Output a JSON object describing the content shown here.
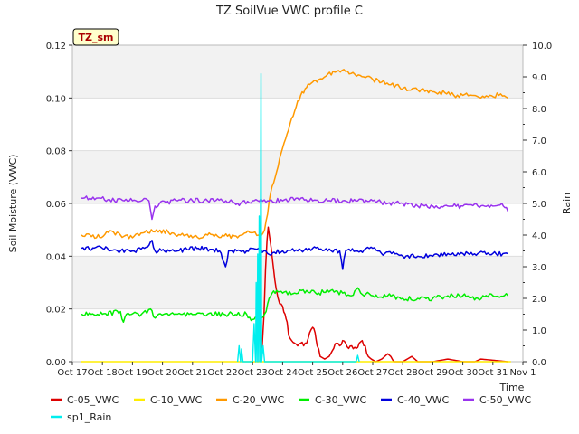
{
  "chart_data": {
    "type": "line",
    "title": "TZ SoilVue VWC profile C",
    "station_label": "TZ_sm",
    "ylabel": "Soil Moisture (VWC)",
    "y2label": "Rain",
    "xlabel": "Time",
    "ylim": [
      0,
      0.12
    ],
    "y2lim": [
      0,
      10
    ],
    "xlim": [
      0,
      15
    ],
    "yticks": [
      "0.00",
      "0.02",
      "0.04",
      "0.06",
      "0.08",
      "0.10",
      "0.12"
    ],
    "y2ticks": [
      "0.0",
      "1.0",
      "2.0",
      "3.0",
      "4.0",
      "5.0",
      "6.0",
      "7.0",
      "8.0",
      "9.0",
      "10.0"
    ],
    "xtick_labels": [
      "Oct 17",
      "Oct 18",
      "Oct 19",
      "Oct 20",
      "Oct 21",
      "Oct 22",
      "Oct 23",
      "Oct 24",
      "Oct 25",
      "Oct 26",
      "Oct 27",
      "Oct 28",
      "Oct 29",
      "Oct 30",
      "Oct 31",
      "Nov 1"
    ],
    "grid": true,
    "legend_position": "bottom",
    "series": [
      {
        "name": "C-05_VWC",
        "color": "#dd0000",
        "axis": "left",
        "points": [
          [
            6.25,
            0
          ],
          [
            6.32,
            0.006
          ],
          [
            6.38,
            0.018
          ],
          [
            6.43,
            0.035
          ],
          [
            6.48,
            0.046
          ],
          [
            6.52,
            0.051
          ],
          [
            6.57,
            0.047
          ],
          [
            6.62,
            0.043
          ],
          [
            6.7,
            0.035
          ],
          [
            6.78,
            0.028
          ],
          [
            6.9,
            0.022
          ],
          [
            7.0,
            0.021
          ],
          [
            7.08,
            0.018
          ],
          [
            7.15,
            0.015
          ],
          [
            7.2,
            0.01
          ],
          [
            7.3,
            0.008
          ],
          [
            7.4,
            0.007
          ],
          [
            7.5,
            0.006
          ],
          [
            7.6,
            0.007
          ],
          [
            7.7,
            0.006
          ],
          [
            7.8,
            0.007
          ],
          [
            7.9,
            0.011
          ],
          [
            8.0,
            0.013
          ],
          [
            8.08,
            0.011
          ],
          [
            8.15,
            0.006
          ],
          [
            8.25,
            0.002
          ],
          [
            8.4,
            0.001
          ],
          [
            8.55,
            0.002
          ],
          [
            8.7,
            0.005
          ],
          [
            8.8,
            0.007
          ],
          [
            8.9,
            0.006
          ],
          [
            9.0,
            0.008
          ],
          [
            9.1,
            0.007
          ],
          [
            9.2,
            0.005
          ],
          [
            9.3,
            0.006
          ],
          [
            9.45,
            0.005
          ],
          [
            9.55,
            0.007
          ],
          [
            9.65,
            0.008
          ],
          [
            9.75,
            0.006
          ],
          [
            9.85,
            0.002
          ],
          [
            9.95,
            0.001
          ],
          [
            10.1,
            0
          ],
          [
            10.3,
            0.001
          ],
          [
            10.5,
            0.003
          ],
          [
            10.6,
            0.002
          ],
          [
            10.7,
            0
          ],
          [
            11.0,
            0
          ],
          [
            11.3,
            0.002
          ],
          [
            11.4,
            0.001
          ],
          [
            11.5,
            0
          ],
          [
            12.0,
            0
          ],
          [
            12.5,
            0.001
          ],
          [
            13.0,
            0
          ],
          [
            13.4,
            0
          ],
          [
            13.6,
            0.001
          ],
          [
            14.5,
            0
          ]
        ]
      },
      {
        "name": "C-10_VWC",
        "color": "#ffee00",
        "axis": "left",
        "points": [
          [
            0.3,
            0.0
          ],
          [
            14.6,
            0.0
          ]
        ]
      },
      {
        "name": "C-20_VWC",
        "color": "#ff9900",
        "axis": "left",
        "points": [
          [
            0.3,
            0.048
          ],
          [
            0.8,
            0.047
          ],
          [
            1.2,
            0.049
          ],
          [
            1.6,
            0.048
          ],
          [
            2.0,
            0.047
          ],
          [
            2.4,
            0.049
          ],
          [
            2.8,
            0.05
          ],
          [
            3.2,
            0.049
          ],
          [
            3.6,
            0.048
          ],
          [
            4.0,
            0.047
          ],
          [
            4.5,
            0.048
          ],
          [
            5.0,
            0.048
          ],
          [
            5.5,
            0.047
          ],
          [
            5.9,
            0.049
          ],
          [
            6.2,
            0.048
          ],
          [
            6.3,
            0.048
          ],
          [
            6.4,
            0.05
          ],
          [
            6.5,
            0.056
          ],
          [
            6.6,
            0.064
          ],
          [
            6.8,
            0.072
          ],
          [
            7.0,
            0.081
          ],
          [
            7.2,
            0.088
          ],
          [
            7.4,
            0.095
          ],
          [
            7.6,
            0.101
          ],
          [
            7.8,
            0.104
          ],
          [
            8.0,
            0.106
          ],
          [
            8.2,
            0.107
          ],
          [
            8.5,
            0.109
          ],
          [
            8.8,
            0.11
          ],
          [
            9.1,
            0.11
          ],
          [
            9.4,
            0.109
          ],
          [
            9.7,
            0.108
          ],
          [
            10.0,
            0.107
          ],
          [
            10.3,
            0.106
          ],
          [
            10.6,
            0.105
          ],
          [
            10.9,
            0.104
          ],
          [
            11.2,
            0.103
          ],
          [
            11.5,
            0.103
          ],
          [
            11.8,
            0.103
          ],
          [
            12.1,
            0.102
          ],
          [
            12.4,
            0.102
          ],
          [
            12.7,
            0.101
          ],
          [
            13.0,
            0.101
          ],
          [
            13.3,
            0.101
          ],
          [
            13.6,
            0.1
          ],
          [
            13.9,
            0.101
          ],
          [
            14.2,
            0.101
          ],
          [
            14.5,
            0.1
          ]
        ]
      },
      {
        "name": "C-30_VWC",
        "color": "#00ee00",
        "axis": "left",
        "points": [
          [
            0.3,
            0.018
          ],
          [
            1.0,
            0.018
          ],
          [
            1.6,
            0.019
          ],
          [
            1.7,
            0.015
          ],
          [
            1.8,
            0.018
          ],
          [
            2.3,
            0.018
          ],
          [
            2.6,
            0.02
          ],
          [
            2.7,
            0.017
          ],
          [
            3.5,
            0.018
          ],
          [
            4.5,
            0.018
          ],
          [
            5.2,
            0.018
          ],
          [
            5.8,
            0.018
          ],
          [
            6.0,
            0.016
          ],
          [
            6.2,
            0.018
          ],
          [
            6.35,
            0.017
          ],
          [
            6.45,
            0.019
          ],
          [
            6.55,
            0.024
          ],
          [
            6.65,
            0.026
          ],
          [
            6.8,
            0.027
          ],
          [
            7.0,
            0.026
          ],
          [
            7.4,
            0.026
          ],
          [
            7.8,
            0.027
          ],
          [
            8.2,
            0.026
          ],
          [
            8.6,
            0.027
          ],
          [
            9.0,
            0.026
          ],
          [
            9.3,
            0.025
          ],
          [
            9.5,
            0.028
          ],
          [
            9.6,
            0.026
          ],
          [
            10.0,
            0.025
          ],
          [
            10.5,
            0.025
          ],
          [
            11.0,
            0.024
          ],
          [
            11.5,
            0.024
          ],
          [
            12.0,
            0.024
          ],
          [
            12.5,
            0.025
          ],
          [
            13.0,
            0.025
          ],
          [
            13.5,
            0.024
          ],
          [
            14.0,
            0.025
          ],
          [
            14.5,
            0.025
          ]
        ]
      },
      {
        "name": "C-40_VWC",
        "color": "#0000dd",
        "axis": "left",
        "points": [
          [
            0.3,
            0.043
          ],
          [
            1.0,
            0.043
          ],
          [
            1.5,
            0.042
          ],
          [
            2.0,
            0.042
          ],
          [
            2.4,
            0.043
          ],
          [
            2.65,
            0.046
          ],
          [
            2.75,
            0.042
          ],
          [
            3.5,
            0.042
          ],
          [
            4.2,
            0.043
          ],
          [
            4.9,
            0.042
          ],
          [
            5.1,
            0.036
          ],
          [
            5.2,
            0.042
          ],
          [
            5.8,
            0.042
          ],
          [
            6.2,
            0.043
          ],
          [
            6.5,
            0.041
          ],
          [
            7.0,
            0.042
          ],
          [
            7.5,
            0.042
          ],
          [
            8.0,
            0.043
          ],
          [
            8.5,
            0.042
          ],
          [
            8.9,
            0.042
          ],
          [
            9.0,
            0.035
          ],
          [
            9.1,
            0.042
          ],
          [
            9.6,
            0.042
          ],
          [
            10.0,
            0.043
          ],
          [
            10.4,
            0.041
          ],
          [
            10.8,
            0.041
          ],
          [
            11.0,
            0.04
          ],
          [
            11.5,
            0.04
          ],
          [
            12.0,
            0.04
          ],
          [
            12.5,
            0.041
          ],
          [
            13.0,
            0.041
          ],
          [
            13.5,
            0.041
          ],
          [
            14.0,
            0.041
          ],
          [
            14.5,
            0.041
          ]
        ]
      },
      {
        "name": "C-50_VWC",
        "color": "#9933ee",
        "axis": "left",
        "points": [
          [
            0.3,
            0.062
          ],
          [
            0.8,
            0.062
          ],
          [
            1.4,
            0.061
          ],
          [
            2.0,
            0.061
          ],
          [
            2.55,
            0.061
          ],
          [
            2.65,
            0.054
          ],
          [
            2.75,
            0.059
          ],
          [
            2.9,
            0.06
          ],
          [
            3.5,
            0.061
          ],
          [
            4.0,
            0.061
          ],
          [
            4.5,
            0.061
          ],
          [
            5.0,
            0.061
          ],
          [
            5.5,
            0.06
          ],
          [
            6.0,
            0.061
          ],
          [
            6.5,
            0.061
          ],
          [
            7.0,
            0.061
          ],
          [
            7.5,
            0.062
          ],
          [
            8.0,
            0.061
          ],
          [
            8.5,
            0.061
          ],
          [
            9.0,
            0.061
          ],
          [
            9.5,
            0.061
          ],
          [
            10.0,
            0.061
          ],
          [
            10.5,
            0.06
          ],
          [
            11.0,
            0.06
          ],
          [
            11.5,
            0.059
          ],
          [
            12.0,
            0.059
          ],
          [
            12.5,
            0.059
          ],
          [
            13.0,
            0.059
          ],
          [
            13.5,
            0.059
          ],
          [
            14.0,
            0.059
          ],
          [
            14.3,
            0.06
          ],
          [
            14.5,
            0.057
          ]
        ]
      },
      {
        "name": "sp1_Rain",
        "color": "#00eeee",
        "axis": "right",
        "points": [
          [
            5.5,
            0
          ],
          [
            5.55,
            0.5
          ],
          [
            5.6,
            0
          ],
          [
            5.63,
            0.4
          ],
          [
            5.68,
            0
          ],
          [
            6.0,
            0
          ],
          [
            6.05,
            1.2
          ],
          [
            6.1,
            0
          ],
          [
            6.12,
            2.5
          ],
          [
            6.15,
            0
          ],
          [
            6.17,
            3.4
          ],
          [
            6.2,
            0
          ],
          [
            6.22,
            4.6
          ],
          [
            6.25,
            0
          ],
          [
            6.28,
            9.1
          ],
          [
            6.3,
            0
          ],
          [
            6.35,
            0.5
          ],
          [
            6.4,
            0
          ],
          [
            9.45,
            0
          ],
          [
            9.5,
            0.2
          ],
          [
            9.55,
            0
          ]
        ]
      }
    ]
  }
}
